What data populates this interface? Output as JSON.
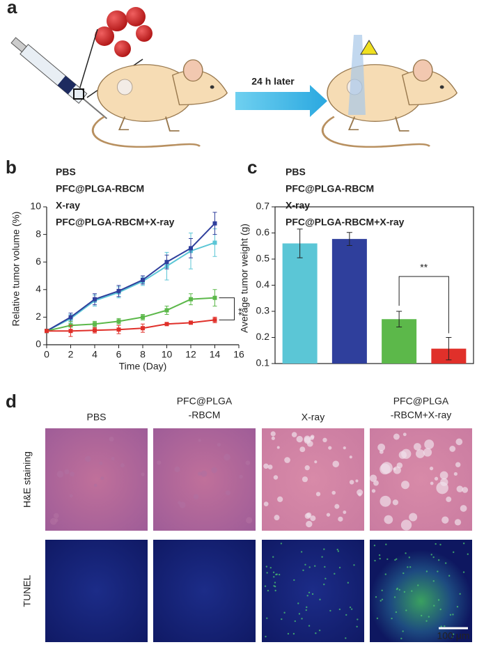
{
  "panel_labels": [
    "a",
    "b",
    "c",
    "d"
  ],
  "schematic": {
    "arrow_label": "24 h later"
  },
  "chart_data": [
    {
      "type": "line",
      "xlabel": "Time (Day)",
      "ylabel": "Relative tumor volume (%)",
      "x": [
        0,
        2,
        4,
        6,
        8,
        10,
        12,
        14
      ],
      "xlim": [
        0,
        16
      ],
      "xticks": [
        0,
        2,
        4,
        6,
        8,
        10,
        12,
        14,
        16
      ],
      "ylim": [
        0,
        10
      ],
      "yticks": [
        0,
        2,
        4,
        6,
        8,
        10
      ],
      "legend": "upper left",
      "annotation": "**",
      "series": [
        {
          "name": "PBS",
          "color": "#5bc6d6",
          "values": [
            1,
            1.9,
            3.2,
            3.8,
            4.6,
            5.7,
            6.8,
            7.4
          ],
          "errors": [
            0.1,
            0.3,
            0.4,
            0.4,
            0.3,
            1.0,
            1.3,
            1.0
          ]
        },
        {
          "name": "PFC@PLGA-RBCM",
          "color": "#2f3f9c",
          "values": [
            1,
            2.0,
            3.3,
            3.9,
            4.7,
            6.0,
            7.0,
            8.8
          ],
          "errors": [
            0.1,
            0.3,
            0.4,
            0.4,
            0.3,
            0.5,
            0.7,
            0.8
          ]
        },
        {
          "name": "X-ray",
          "color": "#5cb84a",
          "values": [
            1,
            1.4,
            1.5,
            1.7,
            2.0,
            2.5,
            3.3,
            3.4
          ],
          "errors": [
            0.1,
            0.3,
            0.2,
            0.2,
            0.2,
            0.3,
            0.4,
            0.6
          ]
        },
        {
          "name": "PFC@PLGA-RBCM+X-ray",
          "color": "#e0302a",
          "values": [
            1,
            1.0,
            1.05,
            1.1,
            1.2,
            1.5,
            1.6,
            1.8
          ],
          "errors": [
            0.1,
            0.4,
            0.2,
            0.3,
            0.3,
            0.1,
            0.1,
            0.2
          ]
        }
      ]
    },
    {
      "type": "bar",
      "ylabel": "Average tumor weight (g)",
      "categories": [
        null
      ],
      "ylim": [
        0.1,
        0.7
      ],
      "yticks": [
        0.1,
        0.2,
        0.3,
        0.4,
        0.5,
        0.6,
        0.7
      ],
      "legend": "upper left",
      "annotation": "**",
      "series": [
        {
          "name": "PBS",
          "color": "#5bc6d6",
          "values": [
            0.56
          ],
          "errors": [
            0.055
          ]
        },
        {
          "name": "PFC@PLGA-RBCM",
          "color": "#2f3f9c",
          "values": [
            0.577
          ],
          "errors": [
            0.025
          ]
        },
        {
          "name": "X-ray",
          "color": "#5cb84a",
          "values": [
            0.27
          ],
          "errors": [
            0.03
          ]
        },
        {
          "name": "PFC@PLGA-RBCM+X-ray",
          "color": "#e0302a",
          "values": [
            0.157
          ],
          "errors": [
            0.043
          ]
        }
      ]
    }
  ],
  "histology": {
    "columns": [
      [
        "PBS"
      ],
      [
        "PFC@PLGA",
        "-RBCM"
      ],
      [
        "X-ray"
      ],
      [
        "PFC@PLGA",
        "-RBCM+X-ray"
      ]
    ],
    "rows": [
      "H&E staining",
      "TUNEL"
    ],
    "scale_bar": "100 μm"
  }
}
